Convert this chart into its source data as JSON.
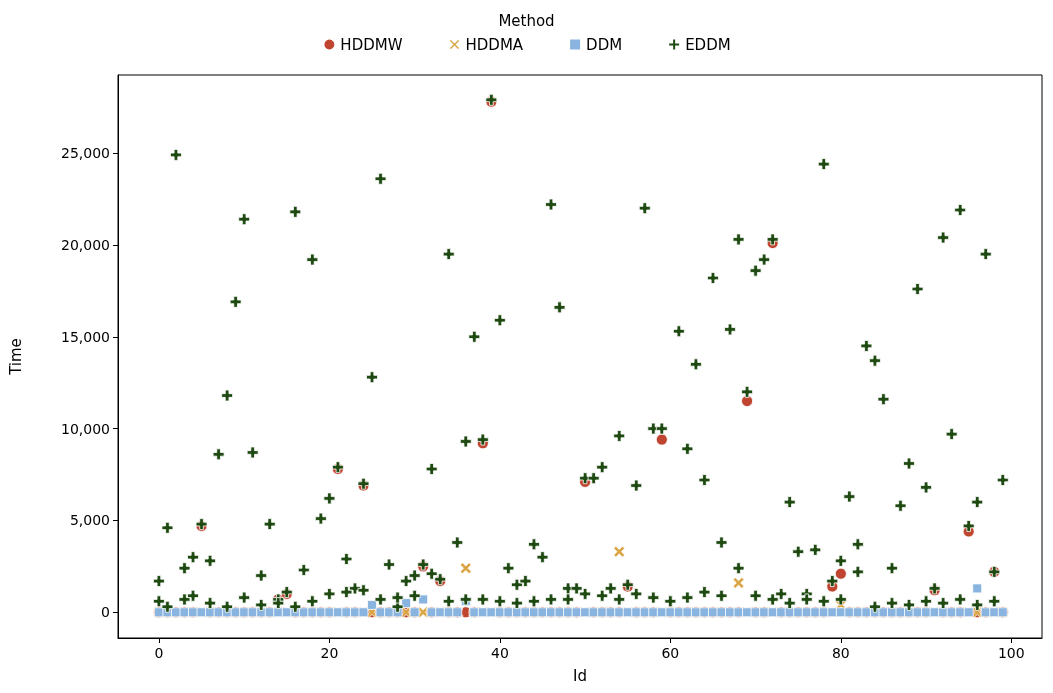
{
  "chart_data": {
    "type": "scatter",
    "xlabel": "Id",
    "ylabel": "Time",
    "legend_title": "Method",
    "legend": "top",
    "grid": false,
    "xlim": [
      -4.8,
      103.6
    ],
    "xticks": [
      0,
      20,
      40,
      60,
      80,
      100
    ],
    "ylim": [
      -1400,
      29250
    ],
    "yticks": [
      {
        "value": 0,
        "label": "0"
      },
      {
        "value": 5000,
        "label": "5,000"
      },
      {
        "value": 10000,
        "label": "10,000"
      },
      {
        "value": 15000,
        "label": "15,000"
      },
      {
        "value": 20000,
        "label": "20,000"
      },
      {
        "value": 25000,
        "label": "25,000"
      }
    ],
    "x": [
      0,
      1,
      2,
      3,
      4,
      5,
      6,
      7,
      8,
      9,
      10,
      11,
      12,
      13,
      14,
      15,
      16,
      17,
      18,
      19,
      20,
      21,
      22,
      23,
      24,
      25,
      26,
      27,
      28,
      29,
      30,
      31,
      32,
      33,
      34,
      35,
      36,
      37,
      38,
      39,
      40,
      41,
      42,
      43,
      44,
      45,
      46,
      47,
      48,
      49,
      50,
      51,
      52,
      53,
      54,
      55,
      56,
      57,
      58,
      59,
      60,
      61,
      62,
      63,
      64,
      65,
      66,
      67,
      68,
      69,
      70,
      71,
      72,
      73,
      74,
      75,
      76,
      77,
      78,
      79,
      80,
      81,
      82,
      83,
      84,
      85,
      86,
      87,
      88,
      89,
      90,
      91,
      92,
      93,
      94,
      95,
      96,
      97,
      98,
      99
    ],
    "series": [
      {
        "name": "HDDMW",
        "color": "#bf4530",
        "marker": "circle",
        "values": [
          0,
          0,
          0,
          0,
          0,
          4700,
          0,
          0,
          0,
          0,
          0,
          0,
          0,
          0,
          700,
          1000,
          0,
          0,
          0,
          0,
          0,
          7800,
          0,
          0,
          6900,
          0,
          0,
          0,
          0,
          0,
          0,
          2500,
          0,
          1700,
          0,
          0,
          0,
          0,
          9200,
          27800,
          0,
          0,
          0,
          0,
          0,
          0,
          0,
          0,
          0,
          0,
          7100,
          0,
          0,
          0,
          0,
          1400,
          0,
          0,
          0,
          9400,
          0,
          0,
          0,
          0,
          0,
          0,
          0,
          0,
          0,
          11500,
          0,
          0,
          20100,
          0,
          0,
          0,
          0,
          0,
          0,
          1400,
          2100,
          0,
          0,
          0,
          0,
          0,
          0,
          0,
          0,
          0,
          0,
          1200,
          0,
          0,
          0,
          4400,
          0,
          0,
          2200,
          0
        ]
      },
      {
        "name": "HDDMA",
        "color": "#d9a441",
        "marker": "cross",
        "values": [
          0,
          0,
          0,
          0,
          0,
          0,
          0,
          0,
          0,
          0,
          0,
          0,
          0,
          0,
          0,
          0,
          0,
          0,
          0,
          0,
          0,
          0,
          0,
          0,
          0,
          0,
          0,
          0,
          0,
          0,
          0,
          0,
          0,
          0,
          0,
          0,
          2400,
          0,
          0,
          0,
          0,
          0,
          0,
          0,
          0,
          0,
          0,
          0,
          0,
          0,
          0,
          0,
          0,
          0,
          3300,
          0,
          0,
          0,
          0,
          0,
          0,
          0,
          0,
          0,
          0,
          0,
          0,
          0,
          1600,
          0,
          0,
          0,
          0,
          0,
          0,
          0,
          0,
          0,
          0,
          0,
          400,
          0,
          0,
          0,
          0,
          0,
          0,
          0,
          0,
          0,
          0,
          0,
          0,
          0,
          0,
          0,
          0,
          0,
          0,
          0
        ]
      },
      {
        "name": "DDM",
        "color": "#8ab4e0",
        "marker": "square",
        "values": [
          0,
          0,
          0,
          0,
          0,
          0,
          0,
          0,
          0,
          0,
          0,
          0,
          0,
          0,
          0,
          0,
          0,
          0,
          0,
          0,
          0,
          0,
          0,
          0,
          0,
          400,
          0,
          0,
          0,
          500,
          0,
          700,
          0,
          0,
          0,
          0,
          600,
          0,
          0,
          0,
          0,
          0,
          0,
          0,
          0,
          0,
          0,
          0,
          0,
          0,
          0,
          0,
          0,
          0,
          0,
          0,
          0,
          0,
          0,
          0,
          0,
          0,
          0,
          0,
          0,
          0,
          0,
          0,
          0,
          0,
          0,
          0,
          0,
          0,
          0,
          0,
          0,
          0,
          0,
          0,
          0,
          0,
          0,
          0,
          0,
          0,
          0,
          0,
          0,
          0,
          0,
          0,
          0,
          0,
          0,
          0,
          1300,
          0,
          0,
          0
        ]
      },
      {
        "name": "EDDM",
        "color": "#1e4a12",
        "marker": "plus",
        "x": [
          0,
          1,
          2,
          3,
          4,
          5,
          6,
          7,
          8,
          9,
          10,
          11,
          12,
          13,
          14,
          15,
          16,
          17,
          18,
          19,
          20,
          21,
          22,
          23,
          24,
          25,
          26,
          27,
          28,
          29,
          30,
          31,
          32,
          33,
          34,
          35,
          36,
          37,
          38,
          39,
          40,
          41,
          42,
          43,
          44,
          45,
          46,
          47,
          48,
          49,
          50,
          51,
          52,
          53,
          54,
          55,
          56,
          57,
          58,
          59,
          60,
          61,
          62,
          63,
          64,
          65,
          66,
          67,
          68,
          69,
          70,
          71,
          72,
          73,
          74,
          75,
          76,
          77,
          78,
          79,
          80,
          81,
          82,
          83,
          84,
          85,
          86,
          87,
          88,
          89,
          90,
          91,
          92,
          93,
          94,
          95,
          96,
          97,
          98,
          99,
          0,
          1,
          3,
          4,
          6,
          8,
          10,
          12,
          14,
          16,
          18,
          20,
          22,
          24,
          26,
          28,
          30,
          32,
          34,
          36,
          38,
          40,
          42,
          44,
          46,
          48,
          50,
          52,
          54,
          56,
          58,
          60,
          62,
          64,
          66,
          68,
          70,
          72,
          74,
          76,
          78,
          80,
          82,
          84,
          86,
          88,
          90,
          92,
          94,
          96,
          98
        ],
        "values": [
          1700,
          4600,
          24900,
          2400,
          3000,
          4800,
          2800,
          8600,
          11800,
          16900,
          21400,
          8700,
          2000,
          4800,
          700,
          1100,
          21800,
          2300,
          19200,
          5100,
          6200,
          7900,
          2900,
          1300,
          7000,
          12800,
          23600,
          2600,
          300,
          1700,
          2000,
          2600,
          7800,
          1800,
          19500,
          3800,
          9300,
          15000,
          9400,
          27900,
          15900,
          2400,
          1500,
          1700,
          3700,
          3000,
          22200,
          16600,
          1300,
          1300,
          7300,
          7300,
          7900,
          1300,
          9600,
          1500,
          6900,
          22000,
          10000,
          10000,
          600,
          15300,
          8900,
          13500,
          7200,
          18200,
          3800,
          15400,
          20300,
          12000,
          18600,
          19200,
          20300,
          1000,
          6000,
          3300,
          1000,
          3400,
          24400,
          1700,
          2800,
          6300,
          3700,
          14500,
          13700,
          11600,
          2400,
          5800,
          8100,
          17600,
          6800,
          1300,
          20400,
          9700,
          21900,
          4700,
          6000,
          19500,
          2200,
          7200,
          600,
          300,
          700,
          900,
          500,
          300,
          800,
          400,
          500,
          300,
          600,
          1000,
          1100,
          1200,
          700,
          800,
          900,
          2100,
          600,
          700,
          700,
          600,
          500,
          600,
          700,
          700,
          1000,
          900,
          700,
          1000,
          800,
          600,
          800,
          1100,
          900,
          2400,
          900,
          700,
          500,
          700,
          600,
          700,
          2200,
          300,
          500,
          400,
          600,
          500,
          700,
          400,
          600
        ]
      }
    ]
  }
}
